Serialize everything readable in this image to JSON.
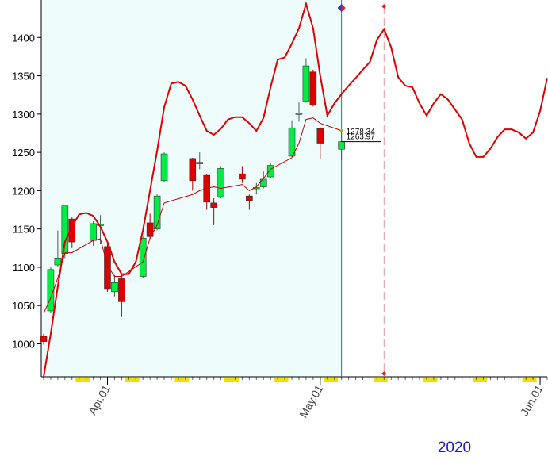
{
  "chart_data": {
    "type": "candlestick",
    "x": [
      "2020-03-23",
      "2020-03-24",
      "2020-03-25",
      "2020-03-26",
      "2020-03-27",
      "2020-03-30",
      "2020-03-31",
      "2020-04-01",
      "2020-04-02",
      "2020-04-03",
      "2020-04-06",
      "2020-04-07",
      "2020-04-08",
      "2020-04-09",
      "2020-04-13",
      "2020-04-14",
      "2020-04-15",
      "2020-04-16",
      "2020-04-17",
      "2020-04-20",
      "2020-04-21",
      "2020-04-22",
      "2020-04-23",
      "2020-04-24",
      "2020-04-27",
      "2020-04-28",
      "2020-04-29",
      "2020-04-30",
      "2020-05-01",
      "2020-05-04"
    ],
    "open": [
      1010,
      1043,
      1103,
      1118,
      1163,
      1135,
      1155,
      1127,
      1068,
      1085,
      1088,
      1158,
      1150,
      1213,
      1242,
      1235,
      1220,
      1184,
      1192,
      1222,
      1193,
      1203,
      1205,
      1218,
      1245,
      1300,
      1317,
      1355,
      1281,
      1254
    ],
    "high": [
      1013,
      1100,
      1148,
      1180,
      1165,
      1160,
      1168,
      1130,
      1090,
      1090,
      1140,
      1170,
      1195,
      1250,
      1243,
      1250,
      1222,
      1190,
      1232,
      1232,
      1195,
      1210,
      1225,
      1236,
      1292,
      1315,
      1373,
      1358,
      1283,
      1280
    ],
    "low": [
      999,
      1040,
      1100,
      1112,
      1125,
      1128,
      1130,
      1068,
      1062,
      1035,
      1086,
      1137,
      1148,
      1212,
      1200,
      1228,
      1175,
      1155,
      1190,
      1210,
      1175,
      1195,
      1203,
      1216,
      1244,
      1290,
      1315,
      1310,
      1242,
      1240
    ],
    "close": [
      1003,
      1097,
      1112,
      1180,
      1133,
      1157,
      1156,
      1072,
      1080,
      1055,
      1138,
      1140,
      1193,
      1248,
      1213,
      1237,
      1185,
      1178,
      1229,
      1215,
      1187,
      1204,
      1215,
      1233,
      1282,
      1301,
      1363,
      1312,
      1262,
      1263.97
    ],
    "colors": {
      "up": "#00ee44",
      "down": "#dd0000"
    },
    "lines": [
      {
        "color": "#cc0000",
        "width": 1,
        "x": [
          "2020-03-23",
          "2020-03-24",
          "2020-03-25",
          "2020-03-26",
          "2020-03-27",
          "2020-03-30",
          "2020-03-31",
          "2020-04-01",
          "2020-04-02",
          "2020-04-03",
          "2020-04-06",
          "2020-04-07",
          "2020-04-08",
          "2020-04-09",
          "2020-04-13",
          "2020-04-14",
          "2020-04-15",
          "2020-04-16",
          "2020-04-17",
          "2020-04-20",
          "2020-04-21",
          "2020-04-22",
          "2020-04-23",
          "2020-04-24",
          "2020-04-27",
          "2020-04-28",
          "2020-04-29",
          "2020-04-30",
          "2020-05-01",
          "2020-05-04"
        ],
        "values": [
          1040,
          1060,
          1086,
          1119,
          1119,
          1135,
          1137,
          1102,
          1088,
          1088,
          1107,
          1138,
          1155,
          1184,
          1195,
          1200,
          1203,
          1205,
          1203,
          1208,
          1200,
          1205,
          1216,
          1228,
          1243,
          1262,
          1293,
          1295,
          1288,
          1278.34
        ]
      },
      {
        "color": "#e00000",
        "width": 2,
        "x": [
          "2020-03-23",
          "2020-03-24",
          "2020-03-25",
          "2020-03-26",
          "2020-03-27",
          "2020-03-28",
          "2020-03-29",
          "2020-03-30",
          "2020-03-31",
          "2020-04-01",
          "2020-04-02",
          "2020-04-03",
          "2020-04-04",
          "2020-04-05",
          "2020-04-06",
          "2020-04-07",
          "2020-04-08",
          "2020-04-09",
          "2020-04-10",
          "2020-04-11",
          "2020-04-12",
          "2020-04-13",
          "2020-04-14",
          "2020-04-15",
          "2020-04-16",
          "2020-04-17",
          "2020-04-18",
          "2020-04-19",
          "2020-04-20",
          "2020-04-21",
          "2020-04-22",
          "2020-04-23",
          "2020-04-24",
          "2020-04-25",
          "2020-04-26",
          "2020-04-27",
          "2020-04-28",
          "2020-04-29",
          "2020-04-30",
          "2020-05-01",
          "2020-05-02",
          "2020-05-03",
          "2020-05-04",
          "2020-05-05",
          "2020-05-06",
          "2020-05-07",
          "2020-05-08",
          "2020-05-09",
          "2020-05-10",
          "2020-05-11",
          "2020-05-12",
          "2020-05-13",
          "2020-05-14",
          "2020-05-15",
          "2020-05-16",
          "2020-05-17",
          "2020-05-18",
          "2020-05-19",
          "2020-05-20",
          "2020-05-21",
          "2020-05-22",
          "2020-05-23",
          "2020-05-24",
          "2020-05-25",
          "2020-05-26",
          "2020-05-27",
          "2020-05-28",
          "2020-05-29",
          "2020-05-30",
          "2020-05-31",
          "2020-06-01",
          "2020-06-02"
        ],
        "values": [
          957,
          1013,
          1075,
          1133,
          1153,
          1169,
          1171,
          1167,
          1153,
          1133,
          1107,
          1091,
          1091,
          1107,
          1148,
          1200,
          1252,
          1309,
          1340,
          1342,
          1337,
          1319,
          1298,
          1278,
          1273,
          1281,
          1293,
          1296,
          1296,
          1288,
          1278,
          1295,
          1335,
          1371,
          1374,
          1392,
          1412,
          1444,
          1412,
          1350,
          1298,
          1314,
          1326,
          1337,
          1347,
          1358,
          1368,
          1397,
          1411,
          1387,
          1348,
          1337,
          1335,
          1314,
          1298,
          1314,
          1326,
          1319,
          1306,
          1293,
          1262,
          1244,
          1244,
          1255,
          1270,
          1280,
          1280,
          1276,
          1268,
          1276,
          1304,
          1347
        ]
      }
    ],
    "markers": [
      {
        "x": "2020-05-04",
        "y": 1278.34
      },
      {
        "x": "2020-05-04",
        "y": 1263.97
      }
    ],
    "vlines": [
      "2020-05-04",
      "2020-05-10"
    ],
    "xlim": [
      "2020-03-23",
      "2020-06-02"
    ],
    "xticks": [
      {
        "value": "2020-04-01",
        "label": "Apr.01"
      },
      {
        "value": "2020-05-01",
        "label": "May.01"
      },
      {
        "value": "2020-06-01",
        "label": "Jun.01"
      }
    ],
    "ylim": [
      957,
      1449
    ],
    "yticks": [
      1000,
      1050,
      1100,
      1150,
      1200,
      1250,
      1300,
      1350,
      1400
    ],
    "year_label": "2020"
  }
}
